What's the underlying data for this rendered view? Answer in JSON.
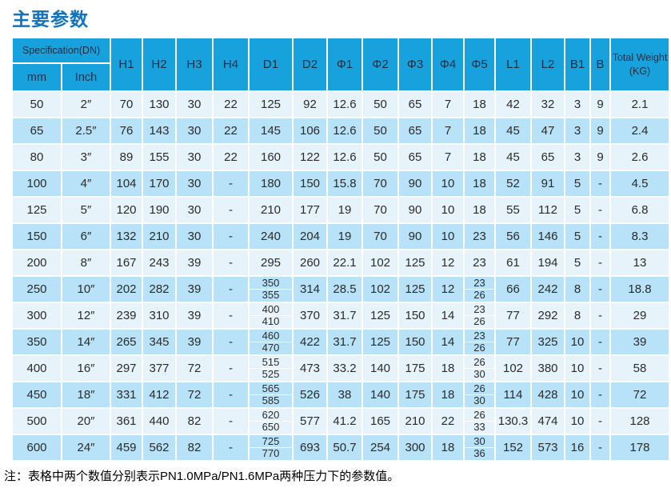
{
  "page": {
    "title": "主要参数",
    "note": "注：表格中两个数值分别表示PN1.0MPa/PN1.6MPa两种压力下的参数值。"
  },
  "colors": {
    "title_blue": "#1173bb",
    "header_bg": "#18a2dd",
    "row_light": "#e6f3fb",
    "row_dark": "#b7e2f7",
    "grid_line": "#ffffff"
  },
  "table": {
    "header": {
      "spec_group": "Specification(DN)",
      "spec_sub": [
        "mm",
        "Inch"
      ],
      "columns": [
        "H1",
        "H2",
        "H3",
        "H4",
        "D1",
        "D2",
        "Φ1",
        "Φ2",
        "Φ3",
        "Φ4",
        "Φ5",
        "L1",
        "L2",
        "B1",
        "B"
      ],
      "weight_line1": "Total Weight",
      "weight_line2": "(KG)"
    },
    "rows": [
      [
        "50",
        "2″",
        "70",
        "130",
        "30",
        "22",
        "125",
        "92",
        "12.6",
        "50",
        "65",
        "7",
        "18",
        "42",
        "32",
        "3",
        "9",
        "2.1"
      ],
      [
        "65",
        "2.5″",
        "76",
        "143",
        "30",
        "22",
        "145",
        "106",
        "12.6",
        "50",
        "65",
        "7",
        "18",
        "45",
        "47",
        "3",
        "9",
        "2.4"
      ],
      [
        "80",
        "3″",
        "89",
        "155",
        "30",
        "22",
        "160",
        "122",
        "12.6",
        "50",
        "65",
        "7",
        "18",
        "45",
        "65",
        "3",
        "9",
        "2.6"
      ],
      [
        "100",
        "4″",
        "104",
        "170",
        "30",
        "-",
        "180",
        "150",
        "15.8",
        "70",
        "90",
        "10",
        "18",
        "52",
        "91",
        "5",
        "-",
        "4.5"
      ],
      [
        "125",
        "5″",
        "120",
        "190",
        "30",
        "-",
        "210",
        "177",
        "19",
        "70",
        "90",
        "10",
        "18",
        "55",
        "112",
        "5",
        "-",
        "6.8"
      ],
      [
        "150",
        "6″",
        "132",
        "210",
        "30",
        "-",
        "240",
        "204",
        "19",
        "70",
        "90",
        "10",
        "23",
        "56",
        "146",
        "5",
        "-",
        "8.3"
      ],
      [
        "200",
        "8″",
        "167",
        "243",
        "39",
        "-",
        "295",
        "260",
        "22.1",
        "102",
        "125",
        "12",
        "23",
        "61",
        "194",
        "5",
        "-",
        "13"
      ],
      [
        "250",
        "10″",
        "202",
        "282",
        "39",
        "-",
        [
          "350",
          "355"
        ],
        "314",
        "28.5",
        "102",
        "125",
        "12",
        [
          "23",
          "26"
        ],
        "66",
        "242",
        "8",
        "-",
        "18.8"
      ],
      [
        "300",
        "12″",
        "239",
        "310",
        "39",
        "-",
        [
          "400",
          "410"
        ],
        "370",
        "31.7",
        "125",
        "150",
        "14",
        [
          "23",
          "26"
        ],
        "77",
        "292",
        "8",
        "-",
        "29"
      ],
      [
        "350",
        "14″",
        "265",
        "345",
        "39",
        "-",
        [
          "460",
          "470"
        ],
        "422",
        "31.7",
        "125",
        "150",
        "14",
        [
          "23",
          "26"
        ],
        "77",
        "325",
        "10",
        "-",
        "39"
      ],
      [
        "400",
        "16″",
        "297",
        "377",
        "72",
        "-",
        [
          "515",
          "525"
        ],
        "473",
        "33.2",
        "140",
        "175",
        "18",
        [
          "26",
          "30"
        ],
        "102",
        "380",
        "10",
        "-",
        "58"
      ],
      [
        "450",
        "18″",
        "331",
        "412",
        "72",
        "-",
        [
          "565",
          "585"
        ],
        "526",
        "38",
        "140",
        "175",
        "18",
        [
          "26",
          "30"
        ],
        "114",
        "428",
        "10",
        "-",
        "72"
      ],
      [
        "500",
        "20″",
        "361",
        "440",
        "82",
        "-",
        [
          "620",
          "650"
        ],
        "577",
        "41.2",
        "165",
        "210",
        "22",
        [
          "26",
          "33"
        ],
        "130.3",
        "474",
        "10",
        "-",
        "128"
      ],
      [
        "600",
        "24″",
        "459",
        "562",
        "82",
        "-",
        [
          "725",
          "770"
        ],
        "693",
        "50.7",
        "254",
        "300",
        "18",
        [
          "30",
          "36"
        ],
        "152",
        "573",
        "16",
        "-",
        "178"
      ]
    ]
  }
}
